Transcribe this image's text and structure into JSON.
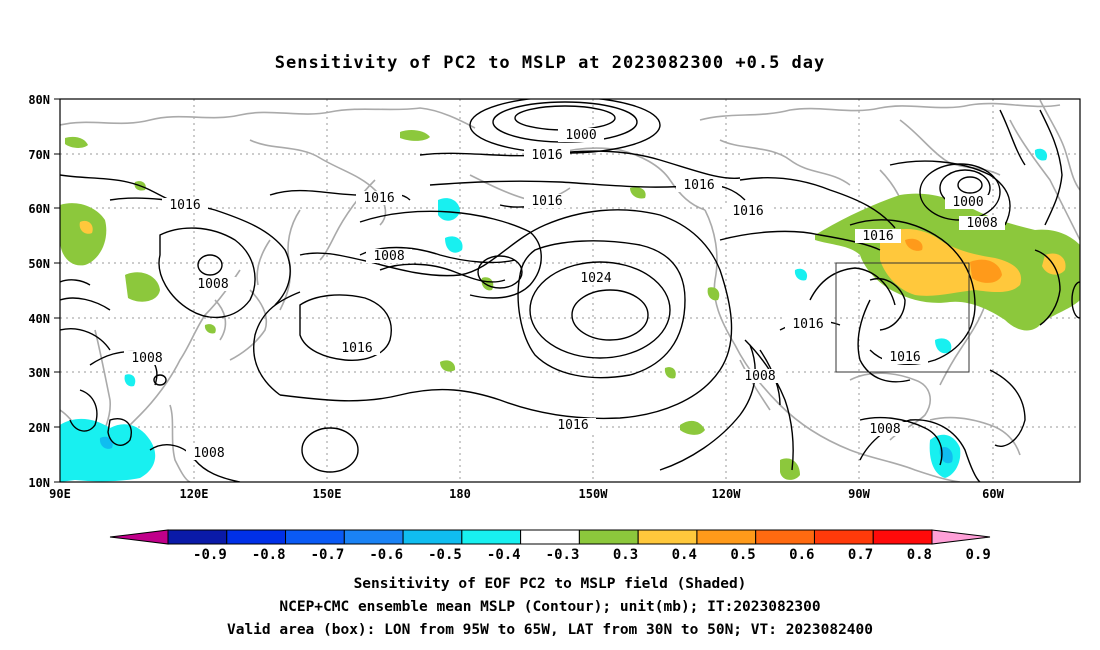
{
  "title": "Sensitivity of PC2 to MSLP at 2023082300 +0.5 day",
  "lat_labels": [
    "80N",
    "70N",
    "60N",
    "50N",
    "40N",
    "30N",
    "20N",
    "10N"
  ],
  "lon_labels": [
    "90E",
    "120E",
    "150E",
    "180",
    "150W",
    "120W",
    "90W",
    "60W"
  ],
  "contour_labels": [
    {
      "id": "c1000a",
      "text": "1000"
    },
    {
      "id": "c1016a",
      "text": "1016"
    },
    {
      "id": "c1016b",
      "text": "1016"
    },
    {
      "id": "c1016c",
      "text": "1016"
    },
    {
      "id": "c1016d",
      "text": "1016"
    },
    {
      "id": "c1016e",
      "text": "1016"
    },
    {
      "id": "c1016f",
      "text": "1016"
    },
    {
      "id": "c1008a",
      "text": "1008"
    },
    {
      "id": "c1008b",
      "text": "1008"
    },
    {
      "id": "c1024",
      "text": "1024"
    },
    {
      "id": "c1016g",
      "text": "1016"
    },
    {
      "id": "c1016h",
      "text": "1016"
    },
    {
      "id": "c1008c",
      "text": "1008"
    },
    {
      "id": "c1016i",
      "text": "1016"
    },
    {
      "id": "c1008d",
      "text": "1008"
    },
    {
      "id": "c1016j",
      "text": "1016"
    },
    {
      "id": "c1008e",
      "text": "1008"
    },
    {
      "id": "c1008f",
      "text": "1008"
    },
    {
      "id": "c1000b",
      "text": "1000"
    },
    {
      "id": "c1008g",
      "text": "1008"
    },
    {
      "id": "c1016k",
      "text": "1016"
    }
  ],
  "colorbar": {
    "labels": [
      "-0.9",
      "-0.8",
      "-0.7",
      "-0.6",
      "-0.5",
      "-0.4",
      "-0.3",
      "0.3",
      "0.4",
      "0.5",
      "0.6",
      "0.7",
      "0.8",
      "0.9"
    ],
    "colors": [
      "#c0008a",
      "#0a1aa8",
      "#0030e8",
      "#0a5af5",
      "#1a82f5",
      "#10bdf0",
      "#18f0f0",
      "#ffffff",
      "#8cc83c",
      "#ffc83c",
      "#ff9a1a",
      "#ff6a10",
      "#ff3a0a",
      "#ff0a0a",
      "#ffa0d8"
    ]
  },
  "shading_colors": {
    "green": "#8cc83c",
    "yellow": "#ffc83c",
    "orange": "#ff9a1a",
    "cyan": "#18f0f0",
    "lightblue": "#10bdf0"
  },
  "caption": [
    "Sensitivity of EOF PC2 to MSLP field (Shaded)",
    "NCEP+CMC ensemble mean MSLP (Contour); unit(mb); IT:2023082300",
    "Valid area (box): LON from 95W to 65W, LAT from 30N to 50N; VT: 2023082400"
  ]
}
